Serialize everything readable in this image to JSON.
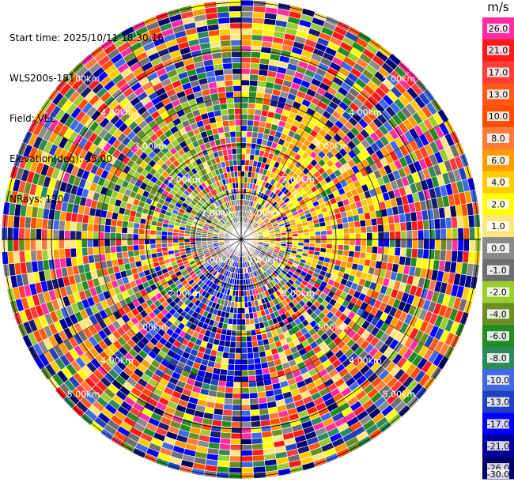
{
  "header": {
    "start_time": "Start time: 2025/10/11 18:30:16",
    "instrument": "WLS200s-181",
    "field": "Field: VEL",
    "elevation": "Elevation(deg): 35.00",
    "nrays": "NRays: 120"
  },
  "range_ring_labels": [
    "1.00km",
    "2.00km",
    "3.00km",
    "4.00km",
    "5.00km"
  ],
  "colorbar": {
    "unit": "m/s",
    "ticks": [
      "26.0",
      "21.0",
      "17.0",
      "13.0",
      "10.0",
      "8.0",
      "6.0",
      "4.0",
      "2.0",
      "1.0",
      "0.0",
      "-1.0",
      "-2.0",
      "-4.0",
      "-6.0",
      "-8.0",
      "-10.0",
      "-13.0",
      "-17.0",
      "-21.0",
      "-26.0",
      "-30.0"
    ],
    "colors": [
      "#ff2ea0",
      "#ff1a1a",
      "#ff3b3b",
      "#ff5a1a",
      "#ff4c00",
      "#ff7a3c",
      "#ff9a00",
      "#ffcc00",
      "#ffff00",
      "#ffe680",
      "#8a8a8a",
      "#6e6e6e",
      "#9acd32",
      "#6b8e23",
      "#228b22",
      "#2e8b57",
      "#4169e1",
      "#2040c0",
      "#0000ff",
      "#000099",
      "#000066",
      "#191970"
    ]
  }
}
